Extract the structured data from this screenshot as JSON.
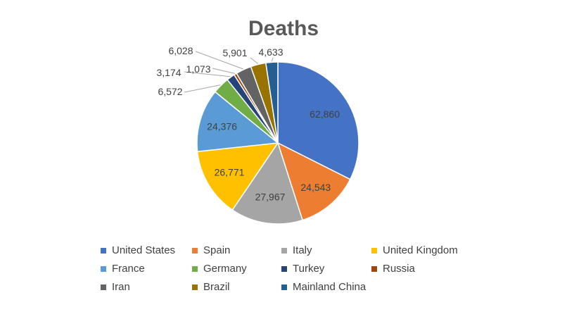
{
  "chart_data": {
    "type": "pie",
    "title": "Deaths",
    "legend_position": "bottom",
    "series": [
      {
        "name": "United States",
        "value": 62860,
        "label": "62,860",
        "color": "#4472C4"
      },
      {
        "name": "Spain",
        "value": 24543,
        "label": "24,543",
        "color": "#ED7D31"
      },
      {
        "name": "Italy",
        "value": 27967,
        "label": "27,967",
        "color": "#A5A5A5"
      },
      {
        "name": "United Kingdom",
        "value": 26771,
        "label": "26,771",
        "color": "#FFC000"
      },
      {
        "name": "France",
        "value": 24376,
        "label": "24,376",
        "color": "#5B9BD5"
      },
      {
        "name": "Germany",
        "value": 6572,
        "label": "6,572",
        "color": "#70AD47"
      },
      {
        "name": "Turkey",
        "value": 3174,
        "label": "3,174",
        "color": "#264478"
      },
      {
        "name": "Russia",
        "value": 1073,
        "label": "1,073",
        "color": "#9E480E"
      },
      {
        "name": "Iran",
        "value": 6028,
        "label": "6,028",
        "color": "#636363"
      },
      {
        "name": "Brazil",
        "value": 5901,
        "label": "5,901",
        "color": "#997300"
      },
      {
        "name": "Mainland China",
        "value": 4633,
        "label": "4,633",
        "color": "#255E91"
      }
    ]
  }
}
